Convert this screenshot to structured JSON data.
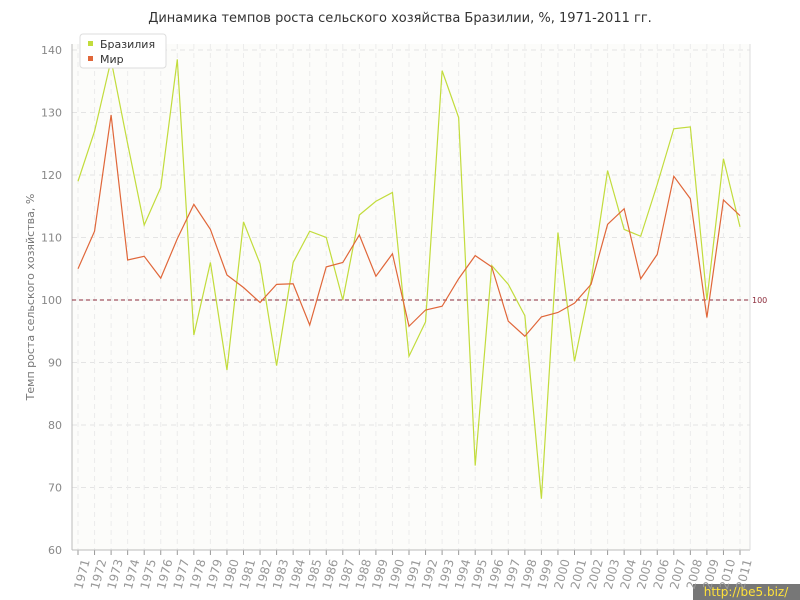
{
  "chart_data": {
    "type": "line",
    "title": "Динамика темпов роста сельского хозяйства Бразилии, %, 1971-2011 гг.",
    "y_label": "Темп роста сельского хозяйства, %",
    "categories": [
      "1971",
      "1972",
      "1973",
      "1974",
      "1975",
      "1976",
      "1977",
      "1978",
      "1979",
      "1980",
      "1981",
      "1982",
      "1983",
      "1984",
      "1985",
      "1986",
      "1987",
      "1988",
      "1989",
      "1990",
      "1991",
      "1992",
      "1993",
      "1994",
      "1995",
      "1996",
      "1997",
      "1998",
      "1999",
      "2000",
      "2001",
      "2002",
      "2003",
      "2004",
      "2005",
      "2006",
      "2007",
      "2008",
      "2009",
      "2010",
      "2011"
    ],
    "series": [
      {
        "name": "Бразилия",
        "color": "#c2dc3c",
        "values": [
          119,
          127,
          138.4,
          125,
          112,
          118,
          138.5,
          94.4,
          106,
          88.8,
          112.5,
          105.8,
          89.5,
          106,
          111,
          110,
          100,
          113.6,
          115.8,
          117.2,
          91,
          96.5,
          136.7,
          129.2,
          73.5,
          105.5,
          102.5,
          97.5,
          68.2,
          110.8,
          90.2,
          103,
          120.7,
          111.3,
          110.2,
          118.5,
          127.4,
          127.7,
          100,
          122.6,
          111.7
        ]
      },
      {
        "name": "Мир",
        "color": "#e0673a",
        "values": [
          105,
          111,
          129.6,
          106.4,
          107,
          103.5,
          109.8,
          115.3,
          111.3,
          104,
          102,
          99.6,
          102.5,
          102.6,
          96,
          105.3,
          106,
          110.4,
          103.8,
          107.4,
          95.8,
          98.4,
          99,
          103.4,
          107.1,
          105.3,
          96.6,
          94.2,
          97.3,
          98,
          99.5,
          102.5,
          112.1,
          114.6,
          103.4,
          107.3,
          119.8,
          116.2,
          97.2,
          116,
          113.5
        ]
      }
    ],
    "ylim": [
      60,
      140
    ],
    "yticks": [
      60,
      70,
      80,
      90,
      100,
      110,
      120,
      130,
      140
    ],
    "grid": true,
    "hline": 100,
    "hline_color": "#8b2a3a",
    "legend": "top-left",
    "watermark": "http://be5.biz/"
  }
}
